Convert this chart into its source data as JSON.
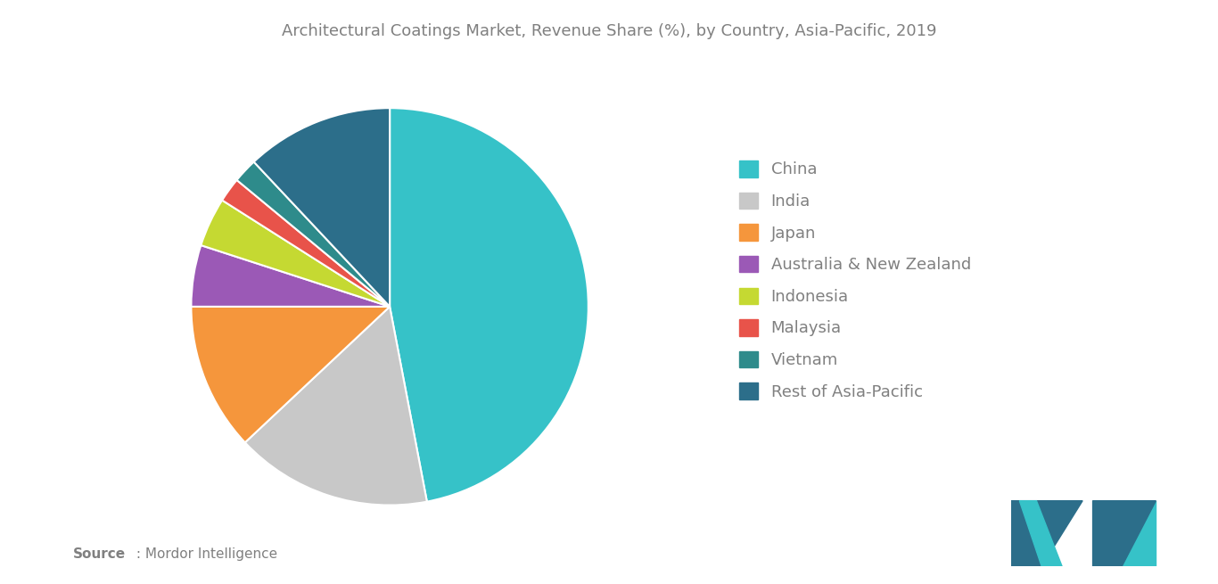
{
  "title": "Architectural Coatings Market, Revenue Share (%), by Country, Asia-Pacific, 2019",
  "labels": [
    "China",
    "India",
    "Japan",
    "Australia & New Zealand",
    "Indonesia",
    "Malaysia",
    "Vietnam",
    "Rest of Asia-Pacific"
  ],
  "values": [
    47,
    16,
    12,
    5,
    4,
    2,
    2,
    12
  ],
  "colors": [
    "#36C2C8",
    "#C8C8C8",
    "#F5963C",
    "#9B59B6",
    "#C5D932",
    "#E8534A",
    "#2E8B8B",
    "#2C6E8A"
  ],
  "source_bold": "Source",
  "source_text": " : Mordor Intelligence",
  "background_color": "#FFFFFF",
  "text_color": "#808080",
  "legend_fontsize": 13,
  "title_fontsize": 13,
  "logo_color_dark": "#2C6E8A",
  "logo_color_light": "#36C2C8"
}
